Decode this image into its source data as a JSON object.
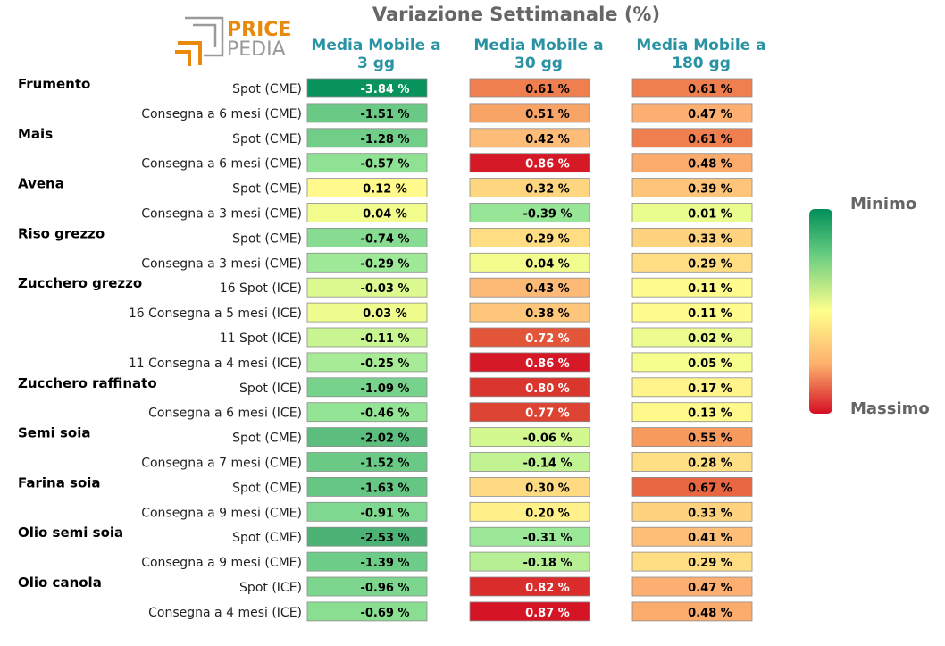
{
  "title": "Variazione Settimanale (%)",
  "logo": {
    "word1": "PRICE",
    "word2": "PEDIA"
  },
  "columns": [
    {
      "line1": "Media Mobile a",
      "line2": "3 gg"
    },
    {
      "line1": "Media Mobile a",
      "line2": "30 gg"
    },
    {
      "line1": "Media Mobile a",
      "line2": "180 gg"
    }
  ],
  "legend": {
    "min_label": "Minimo",
    "max_label": "Massimo"
  },
  "colors": {
    "min": "#008f5a",
    "mid": "#ffff8c",
    "max": "#d40f24",
    "title": "#666666",
    "header": "#2a93a3"
  },
  "chart_data": {
    "type": "heatmap",
    "title": "Variazione Settimanale (%)",
    "x": [
      "Media Mobile a 3 gg",
      "Media Mobile a 30 gg",
      "Media Mobile a 180 gg"
    ],
    "groups": [
      {
        "name": "Frumento",
        "rows": [
          {
            "label": "Spot (CME)",
            "values": [
              -3.84,
              0.61,
              0.61
            ]
          },
          {
            "label": "Consegna a 6 mesi (CME)",
            "values": [
              -1.51,
              0.51,
              0.47
            ]
          }
        ]
      },
      {
        "name": "Mais",
        "rows": [
          {
            "label": "Spot (CME)",
            "values": [
              -1.28,
              0.42,
              0.61
            ]
          },
          {
            "label": "Consegna a 6 mesi (CME)",
            "values": [
              -0.57,
              0.86,
              0.48
            ]
          }
        ]
      },
      {
        "name": "Avena",
        "rows": [
          {
            "label": "Spot (CME)",
            "values": [
              0.12,
              0.32,
              0.39
            ]
          },
          {
            "label": "Consegna a 3 mesi (CME)",
            "values": [
              0.04,
              -0.39,
              0.01
            ]
          }
        ]
      },
      {
        "name": "Riso grezzo",
        "rows": [
          {
            "label": "Spot (CME)",
            "values": [
              -0.74,
              0.29,
              0.33
            ]
          },
          {
            "label": "Consegna a 3 mesi (CME)",
            "values": [
              -0.29,
              0.04,
              0.29
            ]
          }
        ]
      },
      {
        "name": "Zucchero grezzo",
        "rows": [
          {
            "label": "16 Spot (ICE)",
            "values": [
              -0.03,
              0.43,
              0.11
            ]
          },
          {
            "label": "16 Consegna a 5 mesi (ICE)",
            "values": [
              0.03,
              0.38,
              0.11
            ]
          },
          {
            "label": "11 Spot (ICE)",
            "values": [
              -0.11,
              0.72,
              0.02
            ]
          },
          {
            "label": "11 Consegna a 4 mesi (ICE)",
            "values": [
              -0.25,
              0.86,
              0.05
            ]
          }
        ]
      },
      {
        "name": "Zucchero raffinato",
        "rows": [
          {
            "label": "Spot (ICE)",
            "values": [
              -1.09,
              0.8,
              0.17
            ]
          },
          {
            "label": "Consegna a 6 mesi (ICE)",
            "values": [
              -0.46,
              0.77,
              0.13
            ]
          }
        ]
      },
      {
        "name": "Semi soia",
        "rows": [
          {
            "label": "Spot (CME)",
            "values": [
              -2.02,
              -0.06,
              0.55
            ]
          },
          {
            "label": "Consegna a 7 mesi (CME)",
            "values": [
              -1.52,
              -0.14,
              0.28
            ]
          }
        ]
      },
      {
        "name": "Farina soia",
        "rows": [
          {
            "label": "Spot (CME)",
            "values": [
              -1.63,
              0.3,
              0.67
            ]
          },
          {
            "label": "Consegna a 9 mesi (CME)",
            "values": [
              -0.91,
              0.2,
              0.33
            ]
          }
        ]
      },
      {
        "name": "Olio semi soia",
        "rows": [
          {
            "label": "Spot (CME)",
            "values": [
              -2.53,
              -0.31,
              0.41
            ]
          },
          {
            "label": "Consegna a 9 mesi (CME)",
            "values": [
              -1.39,
              -0.18,
              0.29
            ]
          }
        ]
      },
      {
        "name": "Olio canola",
        "rows": [
          {
            "label": "Spot (ICE)",
            "values": [
              -0.96,
              0.82,
              0.47
            ]
          },
          {
            "label": "Consegna a 4 mesi (ICE)",
            "values": [
              -0.69,
              0.87,
              0.48
            ]
          }
        ]
      }
    ],
    "value_suffix": " %",
    "colorscale": [
      "#008f5a",
      "#ffff8c",
      "#d40f24"
    ],
    "legend_labels": [
      "Minimo",
      "Massimo"
    ]
  }
}
